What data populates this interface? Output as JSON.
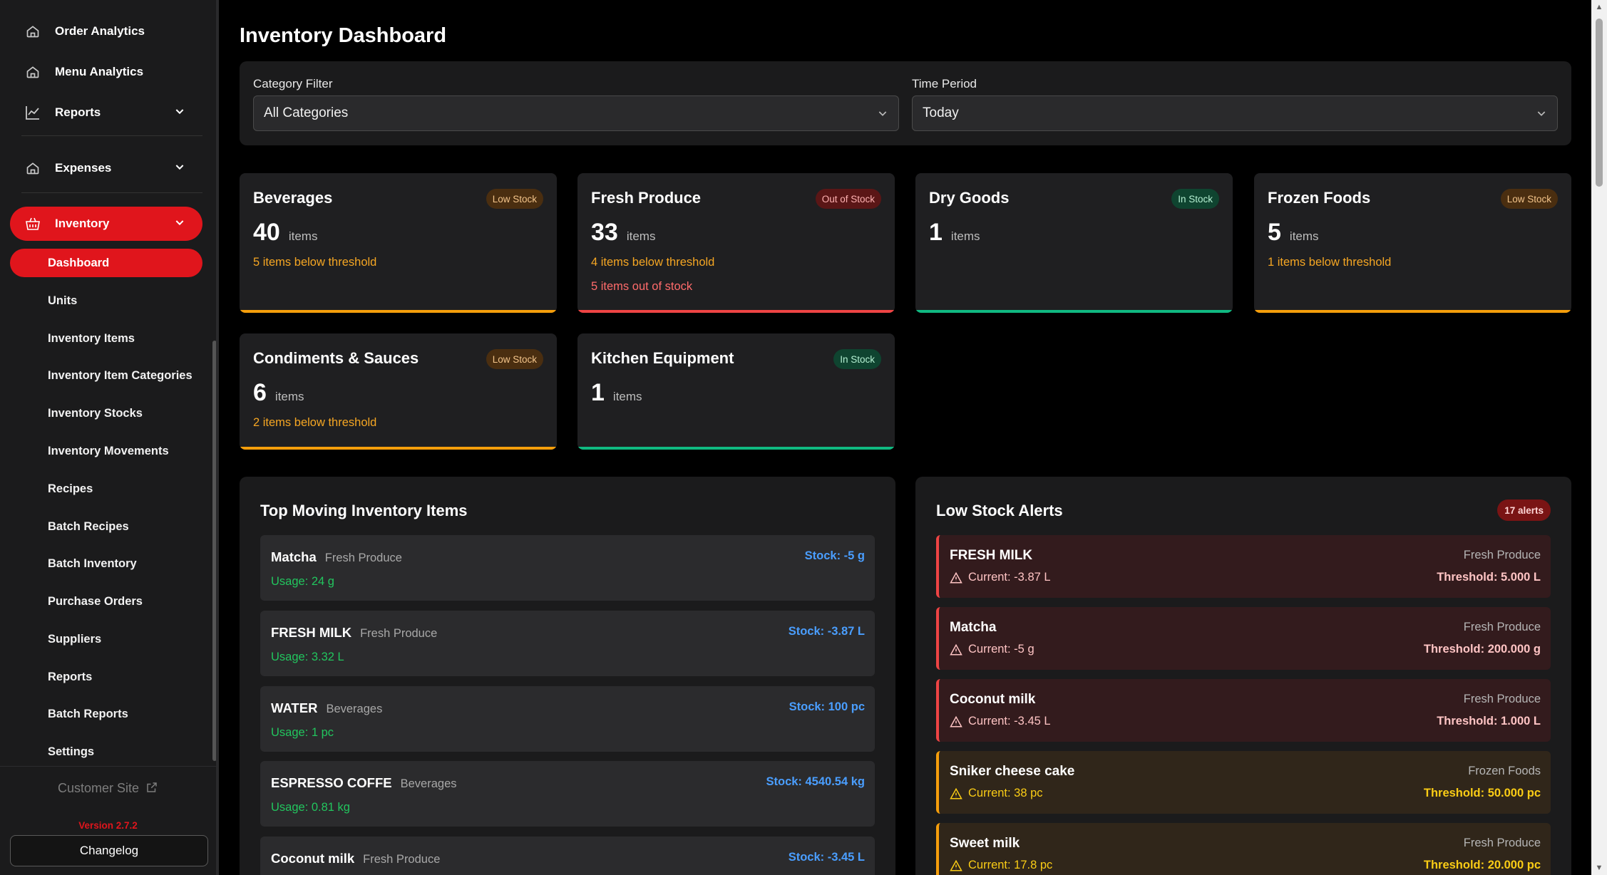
{
  "sidebar": {
    "nav": [
      {
        "label": "Order Analytics",
        "icon": "home-icon"
      },
      {
        "label": "Menu Analytics",
        "icon": "home-icon"
      },
      {
        "label": "Reports",
        "icon": "chart-line-icon"
      },
      {
        "label": "Expenses",
        "icon": "home-icon"
      },
      {
        "label": "Inventory",
        "icon": "basket-icon"
      }
    ],
    "sub_items": [
      {
        "label": "Dashboard",
        "active": true
      },
      {
        "label": "Units"
      },
      {
        "label": "Inventory Items"
      },
      {
        "label": "Inventory Item Categories"
      },
      {
        "label": "Inventory Stocks"
      },
      {
        "label": "Inventory Movements"
      },
      {
        "label": "Recipes"
      },
      {
        "label": "Batch Recipes"
      },
      {
        "label": "Batch Inventory"
      },
      {
        "label": "Purchase Orders"
      },
      {
        "label": "Suppliers"
      },
      {
        "label": "Reports"
      },
      {
        "label": "Batch Reports"
      },
      {
        "label": "Settings"
      }
    ],
    "customer_site": "Customer Site",
    "version": "Version 2.7.2",
    "changelog": "Changelog"
  },
  "page_title": "Inventory Dashboard",
  "filters": {
    "category_label": "Category Filter",
    "category_value": "All Categories",
    "period_label": "Time Period",
    "period_value": "Today"
  },
  "categories": [
    {
      "name": "Beverages",
      "badge": "Low Stock",
      "status": "low",
      "count": "40",
      "unit": "items",
      "below": "5 items below threshold",
      "out": ""
    },
    {
      "name": "Fresh Produce",
      "badge": "Out of Stock",
      "status": "out",
      "count": "33",
      "unit": "items",
      "below": "4 items below threshold",
      "out": "5 items out of stock"
    },
    {
      "name": "Dry Goods",
      "badge": "In Stock",
      "status": "in",
      "count": "1",
      "unit": "items",
      "below": "",
      "out": ""
    },
    {
      "name": "Frozen Foods",
      "badge": "Low Stock",
      "status": "low",
      "count": "5",
      "unit": "items",
      "below": "1 items below threshold",
      "out": ""
    },
    {
      "name": "Condiments & Sauces",
      "badge": "Low Stock",
      "status": "low",
      "count": "6",
      "unit": "items",
      "below": "2 items below threshold",
      "out": ""
    },
    {
      "name": "Kitchen Equipment",
      "badge": "In Stock",
      "status": "in",
      "count": "1",
      "unit": "items",
      "below": "",
      "out": ""
    }
  ],
  "status_colors": {
    "low": "#f59e0b",
    "out": "#ef4444",
    "in": "#10b981"
  },
  "top_moving": {
    "title": "Top Moving Inventory Items",
    "items": [
      {
        "name": "Matcha",
        "category": "Fresh Produce",
        "stock": "Stock: -5 g",
        "usage": "Usage: 24 g"
      },
      {
        "name": "FRESH MILK",
        "category": "Fresh Produce",
        "stock": "Stock: -3.87 L",
        "usage": "Usage: 3.32 L"
      },
      {
        "name": "WATER",
        "category": "Beverages",
        "stock": "Stock: 100 pc",
        "usage": "Usage: 1 pc"
      },
      {
        "name": "ESPRESSO COFFE",
        "category": "Beverages",
        "stock": "Stock: 4540.54 kg",
        "usage": "Usage: 0.81 kg"
      },
      {
        "name": "Coconut milk",
        "category": "Fresh Produce",
        "stock": "Stock: -3.45 L",
        "usage": ""
      }
    ]
  },
  "low_stock": {
    "title": "Low Stock Alerts",
    "badge": "17 alerts",
    "items": [
      {
        "name": "FRESH MILK",
        "category": "Fresh Produce",
        "current": "Current: -3.87 L",
        "threshold": "Threshold: 5.000 L",
        "level": "red"
      },
      {
        "name": "Matcha",
        "category": "Fresh Produce",
        "current": "Current: -5 g",
        "threshold": "Threshold: 200.000 g",
        "level": "red"
      },
      {
        "name": "Coconut milk",
        "category": "Fresh Produce",
        "current": "Current: -3.45 L",
        "threshold": "Threshold: 1.000 L",
        "level": "red"
      },
      {
        "name": "Sniker cheese cake",
        "category": "Frozen Foods",
        "current": "Current: 38 pc",
        "threshold": "Threshold: 50.000 pc",
        "level": "amber"
      },
      {
        "name": "Sweet milk",
        "category": "Fresh Produce",
        "current": "Current: 17.8 pc",
        "threshold": "Threshold: 20.000 pc",
        "level": "amber"
      }
    ]
  }
}
